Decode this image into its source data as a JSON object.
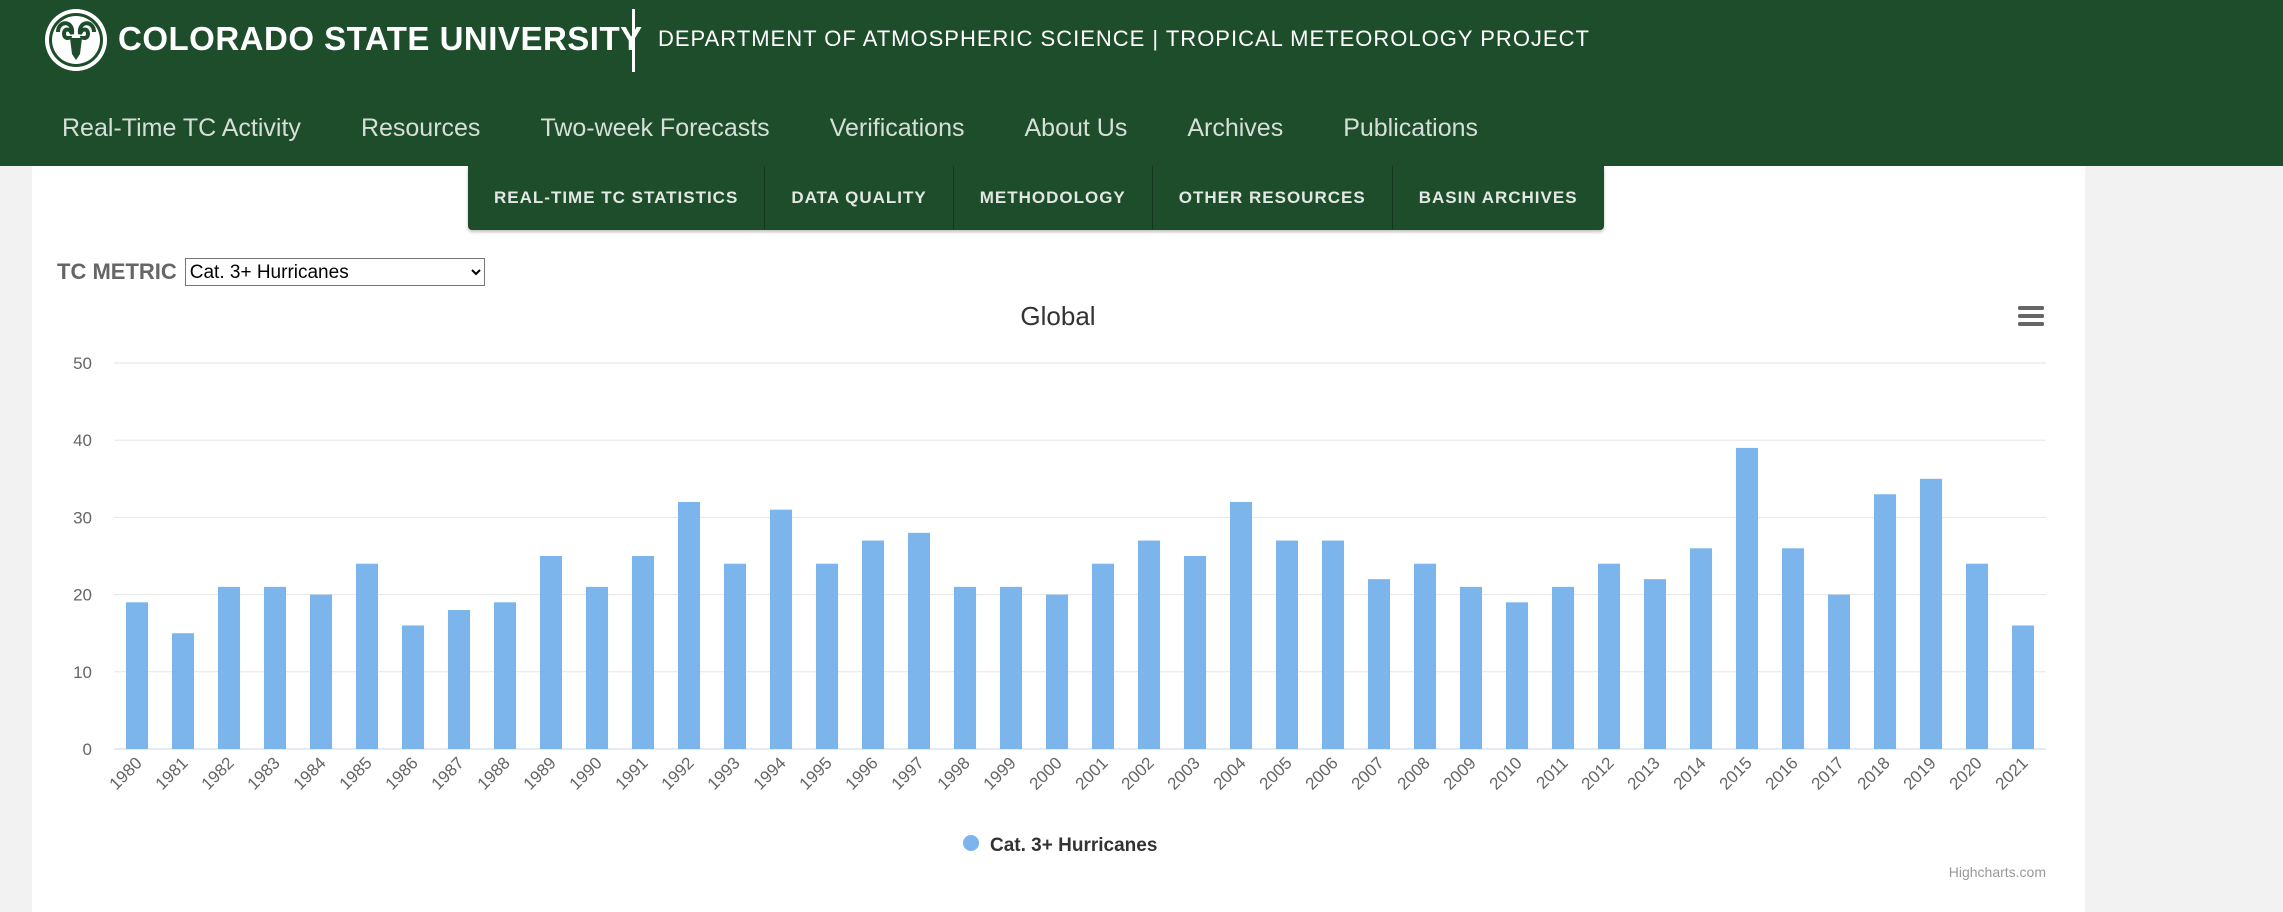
{
  "header": {
    "university": "COLORADO STATE UNIVERSITY",
    "department": "DEPARTMENT OF ATMOSPHERIC SCIENCE | TROPICAL METEOROLOGY PROJECT",
    "color": "#1e4d2b"
  },
  "nav": {
    "items": [
      {
        "label": "Real-Time TC Activity"
      },
      {
        "label": "Resources"
      },
      {
        "label": "Two-week Forecasts"
      },
      {
        "label": "Verifications"
      },
      {
        "label": "About Us"
      },
      {
        "label": "Archives"
      },
      {
        "label": "Publications"
      }
    ]
  },
  "subnav": {
    "items": [
      {
        "label": "REAL-TIME TC STATISTICS"
      },
      {
        "label": "DATA QUALITY"
      },
      {
        "label": "METHODOLOGY"
      },
      {
        "label": "OTHER RESOURCES"
      },
      {
        "label": "BASIN ARCHIVES"
      }
    ]
  },
  "metric": {
    "label": "TC METRIC",
    "selected": "Cat. 3+ Hurricanes"
  },
  "icons": {
    "logo": "ram-logo-icon",
    "menu": "hamburger-menu-icon"
  },
  "chart_data": {
    "type": "bar",
    "title": "Global",
    "xlabel": "",
    "ylabel": "",
    "ylim": [
      0,
      50
    ],
    "yticks": [
      0,
      10,
      20,
      30,
      40,
      50
    ],
    "grid": true,
    "legend_position": "bottom",
    "bar_color": "#7cb5ec",
    "credits": "Highcharts.com",
    "categories": [
      "1980",
      "1981",
      "1982",
      "1983",
      "1984",
      "1985",
      "1986",
      "1987",
      "1988",
      "1989",
      "1990",
      "1991",
      "1992",
      "1993",
      "1994",
      "1995",
      "1996",
      "1997",
      "1998",
      "1999",
      "2000",
      "2001",
      "2002",
      "2003",
      "2004",
      "2005",
      "2006",
      "2007",
      "2008",
      "2009",
      "2010",
      "2011",
      "2012",
      "2013",
      "2014",
      "2015",
      "2016",
      "2017",
      "2018",
      "2019",
      "2020",
      "2021"
    ],
    "series": [
      {
        "name": "Cat. 3+ Hurricanes",
        "values": [
          19,
          15,
          21,
          21,
          20,
          24,
          16,
          18,
          19,
          25,
          21,
          25,
          32,
          24,
          31,
          24,
          27,
          28,
          21,
          21,
          20,
          24,
          27,
          25,
          32,
          27,
          27,
          22,
          24,
          21,
          19,
          21,
          24,
          22,
          26,
          39,
          26,
          20,
          33,
          35,
          24,
          16
        ]
      }
    ]
  }
}
